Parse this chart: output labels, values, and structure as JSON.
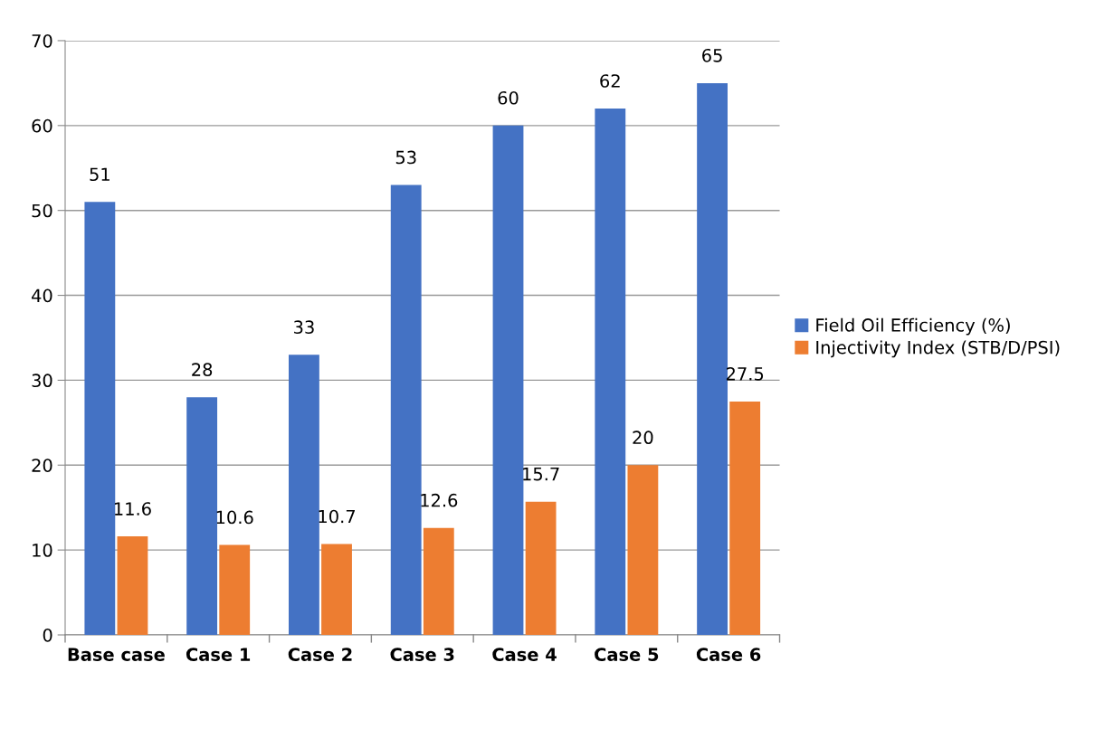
{
  "chart_data": {
    "type": "bar",
    "categories": [
      "Base case",
      "Case 1",
      "Case 2",
      "Case 3",
      "Case 4",
      "Case 5",
      "Case 6"
    ],
    "series": [
      {
        "name": "Field Oil Efficiency (%)",
        "color": "#4472c4",
        "values": [
          51,
          28,
          33,
          53,
          60,
          62,
          65
        ]
      },
      {
        "name": "Injectivity Index (STB/D/PSI)",
        "color": "#ed7d31",
        "values": [
          11.6,
          10.6,
          10.7,
          12.6,
          15.7,
          20,
          27.5
        ]
      }
    ],
    "ylim": [
      0,
      70
    ],
    "yticks": [
      0,
      10,
      20,
      30,
      40,
      50,
      60,
      70
    ],
    "grid": "y",
    "legend": "right",
    "data_labels": true
  }
}
